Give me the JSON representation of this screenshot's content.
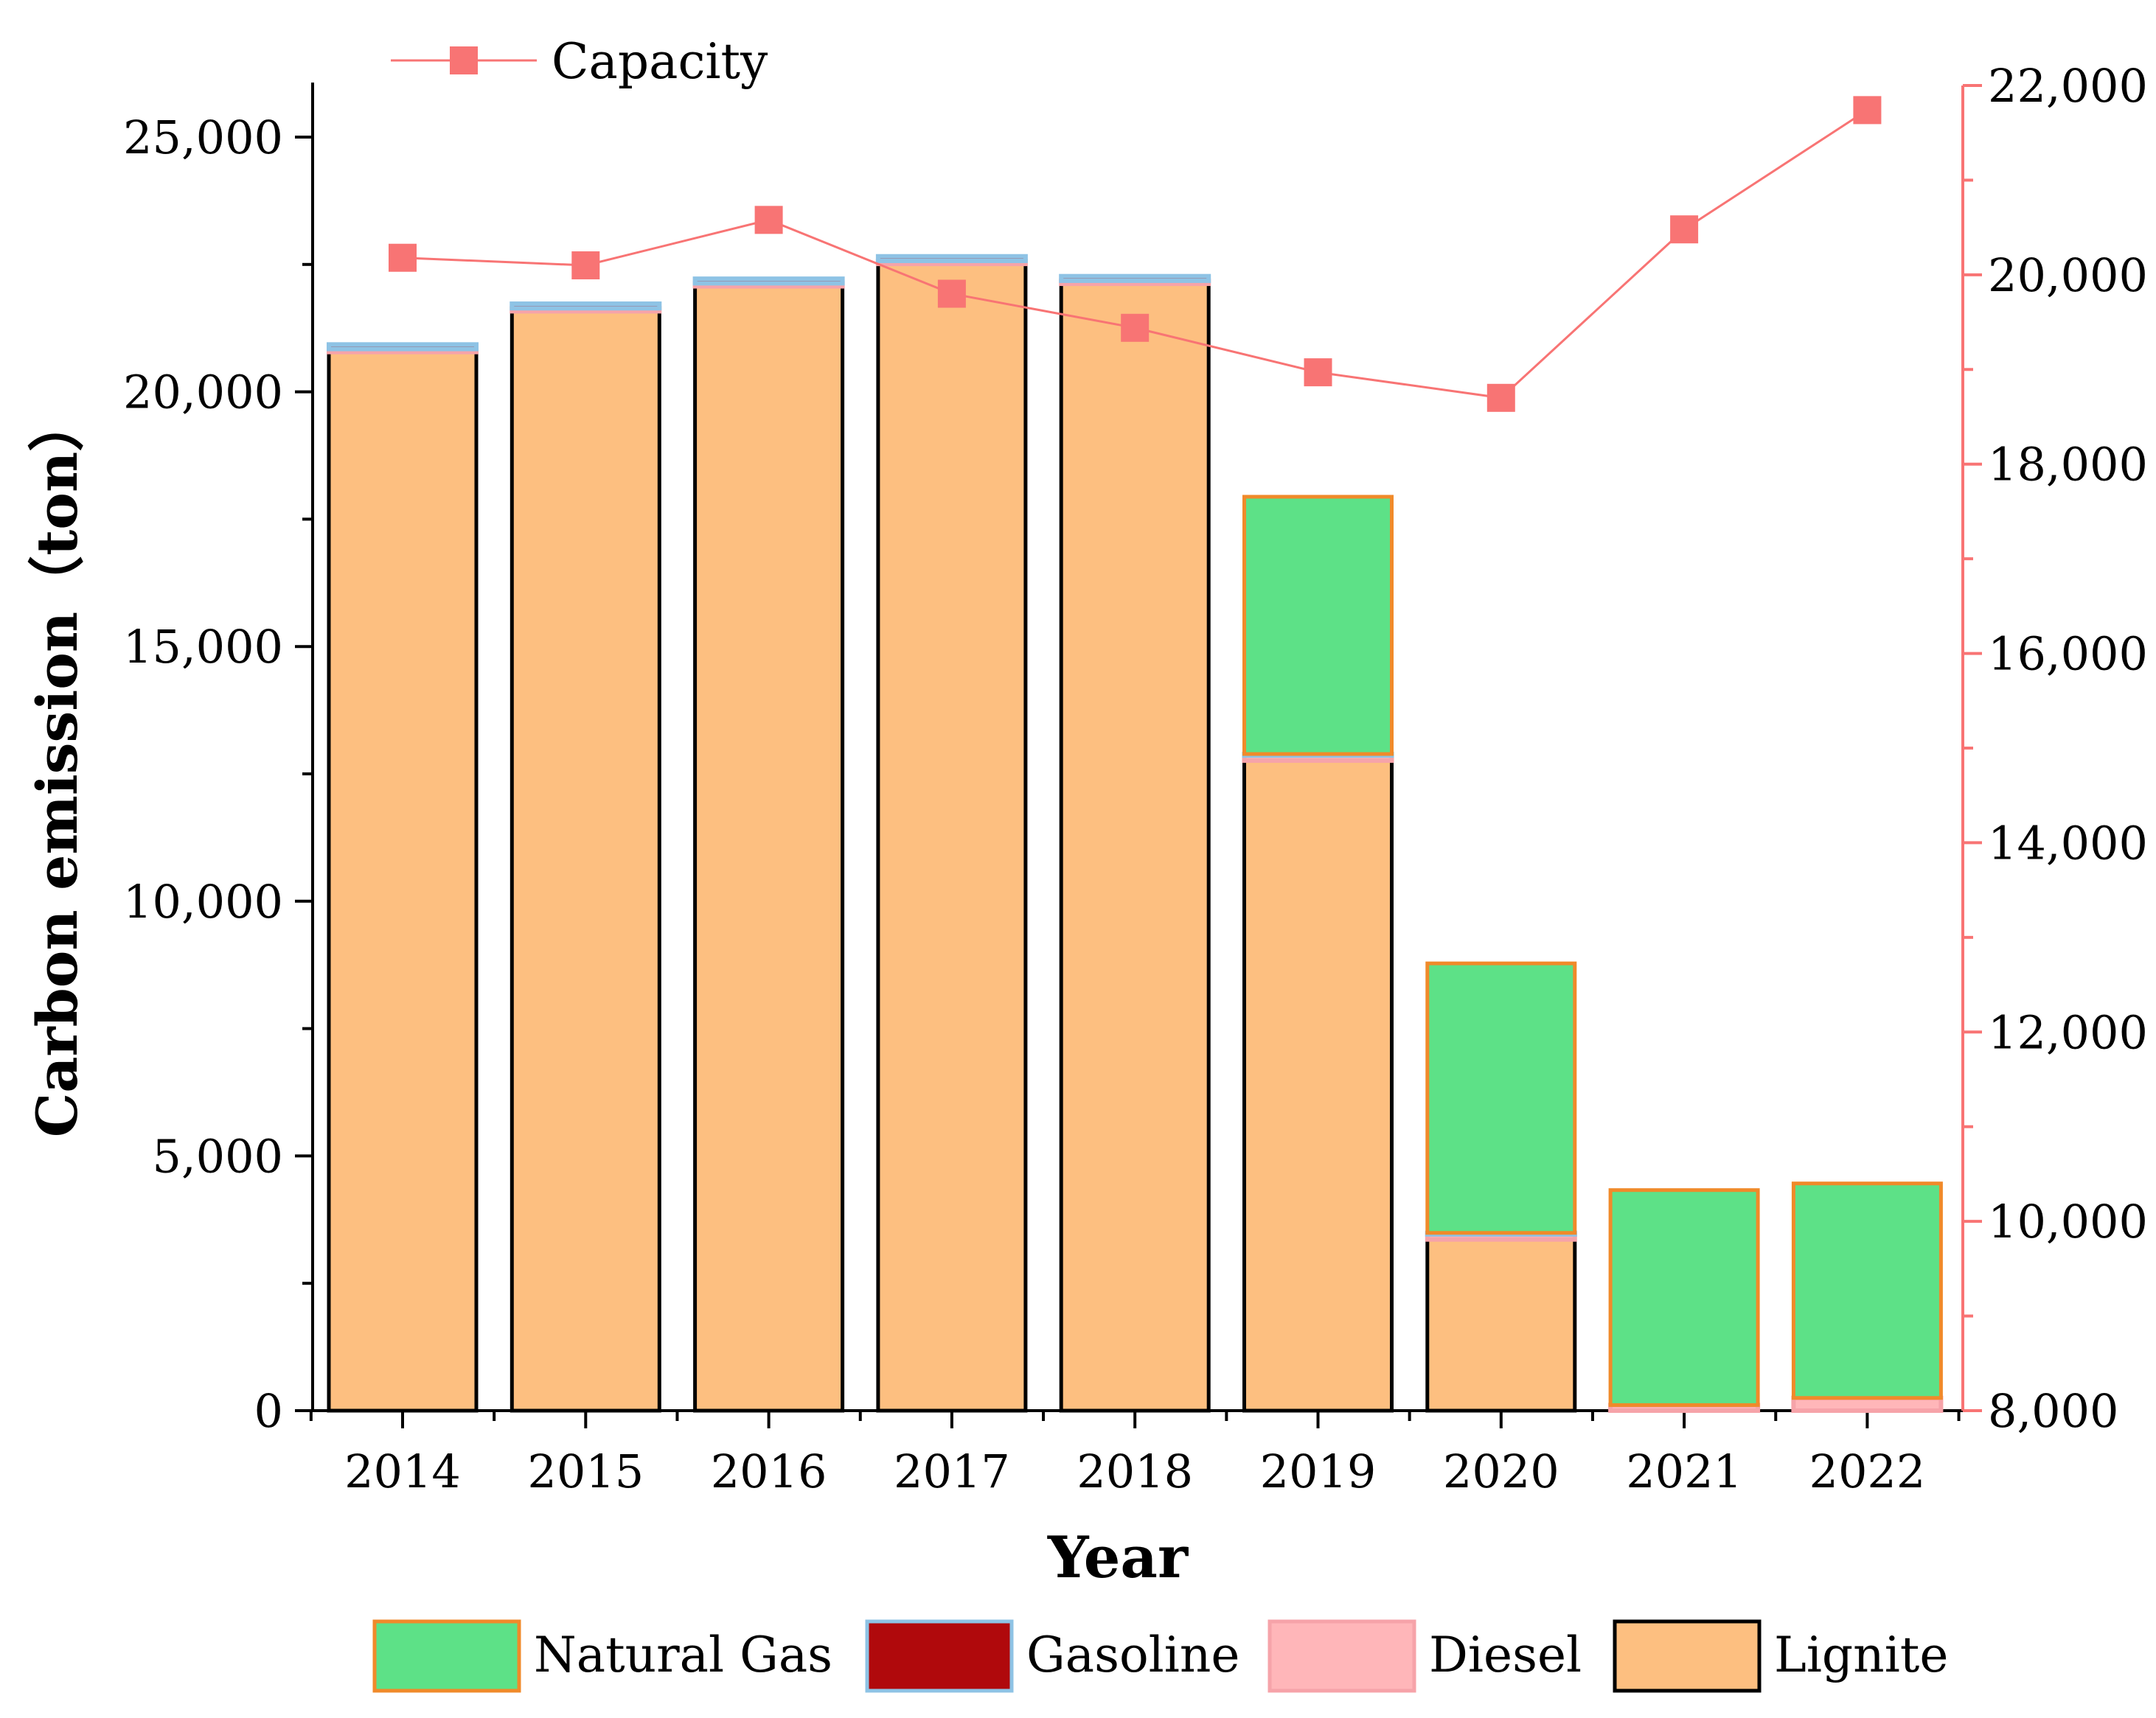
{
  "chart_data": {
    "type": "bar",
    "stacked": true,
    "categories": [
      "2014",
      "2015",
      "2016",
      "2017",
      "2018",
      "2019",
      "2020",
      "2021",
      "2022"
    ],
    "series": [
      {
        "name": "Lignite",
        "color": "#FDBF80",
        "stroke": "#000000",
        "values": [
          20780,
          21580,
          22070,
          22510,
          22120,
          12760,
          3360,
          0,
          0
        ]
      },
      {
        "name": "Diesel",
        "color": "#FFB6B9",
        "stroke": "#F6A3A9",
        "values": [
          60,
          60,
          60,
          60,
          60,
          100,
          100,
          110,
          250
        ]
      },
      {
        "name": "Gasoline",
        "color": "#B0090C",
        "stroke": "#8EC3E5",
        "values": [
          90,
          90,
          90,
          90,
          90,
          30,
          30,
          0,
          0
        ]
      },
      {
        "name": "Natural Gas",
        "color": "#5DE187",
        "stroke": "#F08A2A",
        "values": [
          0,
          0,
          0,
          0,
          0,
          5050,
          5290,
          4220,
          4210
        ]
      }
    ],
    "line_series": {
      "name": "Capacity",
      "axis": "right",
      "color": "#F87474",
      "values": [
        20180,
        20100,
        20580,
        19800,
        19440,
        18970,
        18700,
        20480,
        21740
      ]
    },
    "xlabel": "Year",
    "ylabel": "Carbon emission（ton）",
    "ylim": [
      0,
      26000
    ],
    "yticks": [
      0,
      5000,
      10000,
      15000,
      20000,
      25000
    ],
    "ytick_labels": [
      "0",
      "5,000",
      "10,000",
      "15,000",
      "20,000",
      "25,000"
    ],
    "y2lim": [
      8000,
      22000
    ],
    "y2ticks": [
      8000,
      10000,
      12000,
      14000,
      16000,
      18000,
      20000,
      22000
    ],
    "y2tick_labels": [
      "8,000",
      "10,000",
      "12,000",
      "14,000",
      "16,000",
      "18,000",
      "20,000",
      "22,000"
    ],
    "legend_top": [
      "Capacity"
    ],
    "legend_bottom": [
      "Natural Gas",
      "Gasoline",
      "Diesel",
      "Lignite"
    ],
    "axis_color_right": "#F87474"
  }
}
